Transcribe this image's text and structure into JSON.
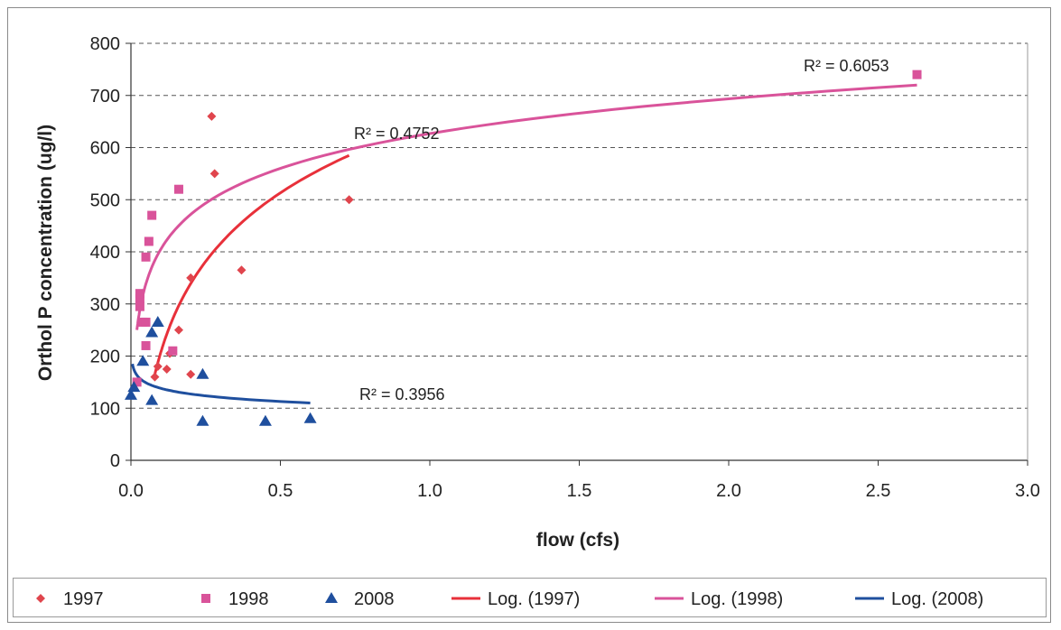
{
  "chart_data": {
    "type": "scatter",
    "title": "",
    "xlabel": "flow (cfs)",
    "ylabel": "Orthol P concentration (ug/l)",
    "xlim": [
      0,
      3.0
    ],
    "ylim": [
      0,
      800
    ],
    "x_ticks": [
      "0.0",
      "0.5",
      "1.0",
      "1.5",
      "2.0",
      "2.5",
      "3.0"
    ],
    "y_ticks": [
      "0",
      "100",
      "200",
      "300",
      "400",
      "500",
      "600",
      "700",
      "800"
    ],
    "grid": "horizontal dashed",
    "legend_position": "bottom",
    "series": [
      {
        "name": "1997",
        "marker": "diamond",
        "color": "#e0454d",
        "points": [
          [
            0.08,
            160
          ],
          [
            0.09,
            180
          ],
          [
            0.12,
            175
          ],
          [
            0.13,
            205
          ],
          [
            0.16,
            250
          ],
          [
            0.2,
            165
          ],
          [
            0.2,
            350
          ],
          [
            0.27,
            660
          ],
          [
            0.28,
            550
          ],
          [
            0.37,
            365
          ],
          [
            0.73,
            500
          ]
        ]
      },
      {
        "name": "1998",
        "marker": "square",
        "color": "#d9539a",
        "points": [
          [
            0.02,
            150
          ],
          [
            0.03,
            310
          ],
          [
            0.03,
            320
          ],
          [
            0.03,
            295
          ],
          [
            0.04,
            265
          ],
          [
            0.05,
            265
          ],
          [
            0.05,
            220
          ],
          [
            0.05,
            390
          ],
          [
            0.06,
            420
          ],
          [
            0.07,
            470
          ],
          [
            0.14,
            210
          ],
          [
            0.16,
            520
          ],
          [
            2.63,
            740
          ]
        ]
      },
      {
        "name": "2008",
        "marker": "triangle",
        "color": "#1f4f9e",
        "points": [
          [
            0.0,
            125
          ],
          [
            0.01,
            140
          ],
          [
            0.04,
            190
          ],
          [
            0.07,
            115
          ],
          [
            0.07,
            245
          ],
          [
            0.09,
            265
          ],
          [
            0.24,
            75
          ],
          [
            0.24,
            165
          ],
          [
            0.45,
            75
          ],
          [
            0.6,
            80
          ]
        ]
      }
    ],
    "trendlines": [
      {
        "name": "Log. (1997)",
        "color": "#e8303a",
        "type": "log",
        "x_range": [
          0.08,
          0.73
        ],
        "endpoints": [
          [
            0.08,
            165
          ],
          [
            0.73,
            585
          ]
        ],
        "r2_label": "R² = 0.4752"
      },
      {
        "name": "Log. (1998)",
        "color": "#d9539a",
        "type": "log",
        "x_range": [
          0.02,
          2.63
        ],
        "endpoints": [
          [
            0.02,
            250
          ],
          [
            2.63,
            720
          ]
        ],
        "r2_label": "R² = 0.6053"
      },
      {
        "name": "Log. (2008)",
        "color": "#1f4f9e",
        "type": "log",
        "x_range": [
          0.0,
          0.6
        ],
        "endpoints": [
          [
            0.0,
            185
          ],
          [
            0.6,
            110
          ]
        ],
        "r2_label": "R² = 0.3956"
      }
    ],
    "annotations": [
      "R² = 0.6053",
      "R² = 0.4752",
      "R² = 0.3956"
    ],
    "legend": [
      "1997",
      "1998",
      "2008",
      "Log. (1997)",
      "Log. (1998)",
      "Log. (2008)"
    ]
  }
}
